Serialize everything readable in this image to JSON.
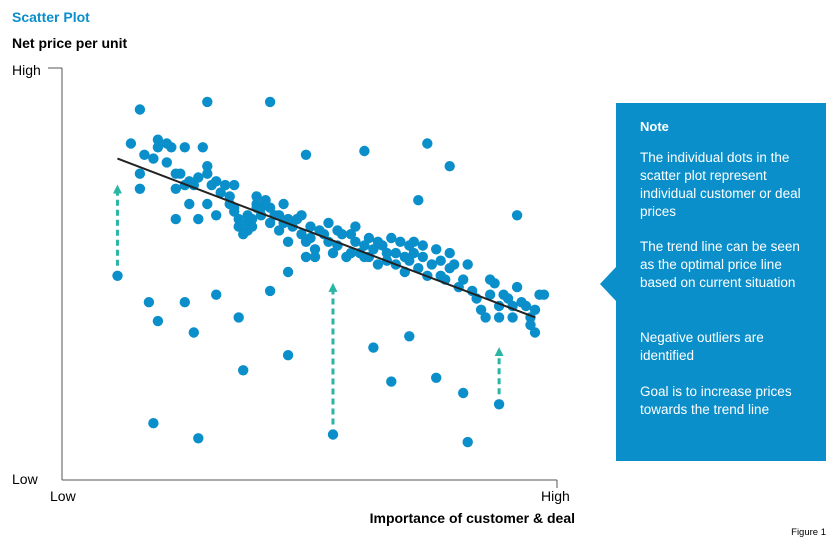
{
  "chart_data": {
    "type": "scatter",
    "title": "Scatter Plot",
    "ylabel": "Net price per unit",
    "xlabel": "Importance of customer & deal",
    "x_ticks": [
      "Low",
      "High"
    ],
    "y_ticks": [
      "Low",
      "High"
    ],
    "xlim": [
      0,
      100
    ],
    "ylim": [
      0,
      100
    ],
    "point_color": "#0a8fca",
    "trendline_color": "#222222",
    "arrow_color": "#2ab5a5",
    "trend_line": {
      "x": [
        5,
        98
      ],
      "y": [
        80,
        38
      ]
    },
    "series": [
      {
        "values": [
          [
            10,
            93
          ],
          [
            8,
            84
          ],
          [
            11,
            81
          ],
          [
            10,
            76
          ],
          [
            10,
            72
          ],
          [
            14,
            85
          ],
          [
            13,
            80
          ],
          [
            14,
            83
          ],
          [
            16,
            84
          ],
          [
            16,
            79
          ],
          [
            17,
            83
          ],
          [
            18,
            76
          ],
          [
            20,
            83
          ],
          [
            18,
            72
          ],
          [
            19,
            76
          ],
          [
            20,
            73
          ],
          [
            21,
            74
          ],
          [
            21,
            68
          ],
          [
            18,
            64
          ],
          [
            22,
            73
          ],
          [
            23,
            75
          ],
          [
            23,
            64
          ],
          [
            25,
            78
          ],
          [
            25,
            76
          ],
          [
            25,
            68
          ],
          [
            26,
            73
          ],
          [
            27,
            74
          ],
          [
            28,
            71
          ],
          [
            27,
            65
          ],
          [
            29,
            73
          ],
          [
            30,
            70
          ],
          [
            30,
            68
          ],
          [
            31,
            73
          ],
          [
            31,
            67
          ],
          [
            32,
            62
          ],
          [
            33,
            60
          ],
          [
            32,
            64
          ],
          [
            31,
            66
          ],
          [
            34,
            65
          ],
          [
            34,
            63
          ],
          [
            36,
            67
          ],
          [
            35,
            64
          ],
          [
            35,
            62
          ],
          [
            34,
            61
          ],
          [
            36,
            70
          ],
          [
            36,
            68
          ],
          [
            37,
            67
          ],
          [
            37,
            65
          ],
          [
            38,
            69
          ],
          [
            39,
            63
          ],
          [
            39,
            67
          ],
          [
            40,
            65
          ],
          [
            41,
            61
          ],
          [
            41,
            65
          ],
          [
            42,
            68
          ],
          [
            42,
            63
          ],
          [
            43,
            58
          ],
          [
            43,
            64
          ],
          [
            44,
            62
          ],
          [
            45,
            64
          ],
          [
            46,
            65
          ],
          [
            46,
            60
          ],
          [
            47,
            58
          ],
          [
            47,
            54
          ],
          [
            48,
            62
          ],
          [
            48,
            59
          ],
          [
            49,
            56
          ],
          [
            49,
            54
          ],
          [
            50,
            61
          ],
          [
            51,
            60
          ],
          [
            52,
            63
          ],
          [
            52,
            58
          ],
          [
            53,
            55
          ],
          [
            54,
            61
          ],
          [
            54,
            57
          ],
          [
            55,
            60
          ],
          [
            56,
            54
          ],
          [
            57,
            60
          ],
          [
            57,
            55
          ],
          [
            58,
            62
          ],
          [
            58,
            58
          ],
          [
            59,
            55
          ],
          [
            60,
            57
          ],
          [
            60,
            54
          ],
          [
            61,
            59
          ],
          [
            61,
            54
          ],
          [
            62,
            56
          ],
          [
            63,
            58
          ],
          [
            63,
            52
          ],
          [
            64,
            57
          ],
          [
            65,
            55
          ],
          [
            65,
            53
          ],
          [
            66,
            59
          ],
          [
            67,
            52
          ],
          [
            67,
            55
          ],
          [
            68,
            58
          ],
          [
            69,
            54
          ],
          [
            69,
            50
          ],
          [
            70,
            53
          ],
          [
            70,
            57
          ],
          [
            71,
            58
          ],
          [
            71,
            55
          ],
          [
            72,
            51
          ],
          [
            73,
            57
          ],
          [
            73,
            54
          ],
          [
            74,
            49
          ],
          [
            75,
            52
          ],
          [
            76,
            56
          ],
          [
            77,
            49
          ],
          [
            77,
            53
          ],
          [
            78,
            48
          ],
          [
            79,
            51
          ],
          [
            79,
            55
          ],
          [
            80,
            52
          ],
          [
            81,
            46
          ],
          [
            82,
            48
          ],
          [
            83,
            52
          ],
          [
            84,
            45
          ],
          [
            85,
            43
          ],
          [
            86,
            40
          ],
          [
            87,
            38
          ],
          [
            88,
            44
          ],
          [
            89,
            47
          ],
          [
            90,
            41
          ],
          [
            91,
            44
          ],
          [
            92,
            43
          ],
          [
            93,
            41
          ],
          [
            93,
            38
          ],
          [
            94,
            46
          ],
          [
            95,
            42
          ],
          [
            96,
            41
          ],
          [
            97,
            38
          ],
          [
            97,
            36
          ],
          [
            98,
            34
          ],
          [
            98,
            40
          ],
          [
            99,
            44
          ],
          [
            100,
            44
          ],
          [
            12,
            42
          ],
          [
            14,
            37
          ],
          [
            20,
            42
          ],
          [
            22,
            34
          ],
          [
            27,
            44
          ],
          [
            32,
            38
          ],
          [
            33,
            24
          ],
          [
            39,
            45
          ],
          [
            43,
            28
          ],
          [
            47,
            81
          ],
          [
            60,
            82
          ],
          [
            62,
            30
          ],
          [
            66,
            21
          ],
          [
            72,
            69
          ],
          [
            74,
            84
          ],
          [
            70,
            33
          ],
          [
            76,
            22
          ],
          [
            79,
            78
          ],
          [
            82,
            18
          ],
          [
            94,
            65
          ],
          [
            5,
            49
          ],
          [
            25,
            95
          ],
          [
            39,
            95
          ],
          [
            24,
            83
          ],
          [
            90,
            15
          ],
          [
            88,
            48
          ],
          [
            43,
            50
          ],
          [
            90,
            38
          ],
          [
            13,
            10
          ],
          [
            23,
            6
          ],
          [
            53,
            7
          ],
          [
            83,
            5
          ]
        ]
      }
    ],
    "arrows": [
      {
        "x": 5,
        "y_from": 49,
        "y_to": 73
      },
      {
        "x": 53,
        "y_from": 7,
        "y_to": 47
      },
      {
        "x": 90,
        "y_from": 15,
        "y_to": 30
      }
    ]
  },
  "note": {
    "heading": "Note",
    "items": [
      "The individual dots in the scatter plot represent individual customer or deal prices",
      "The trend line can be seen as the optimal price line based on current situation",
      "Negative outliers are identified",
      "Goal is to increase prices towards the trend line"
    ]
  },
  "figure_label": "Figure 1"
}
